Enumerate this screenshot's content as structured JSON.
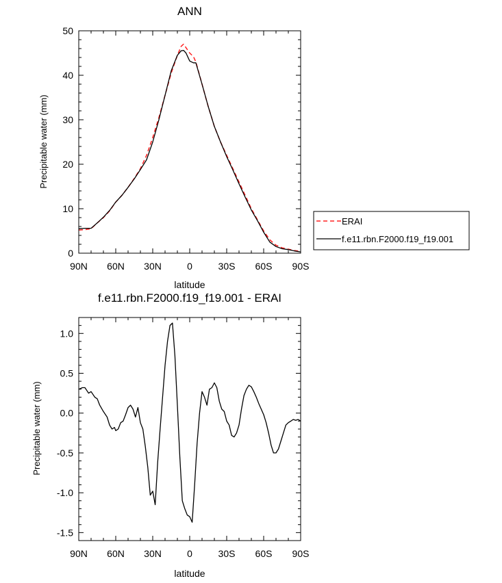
{
  "chart_data": [
    {
      "type": "line",
      "title": "ANN",
      "xlabel": "latitude",
      "ylabel": "Precipitable water (mm)",
      "xlim": [
        90,
        -90
      ],
      "ylim": [
        0,
        50
      ],
      "x_ticks": [
        90,
        60,
        30,
        0,
        -30,
        -60,
        -90
      ],
      "x_tick_labels": [
        "90N",
        "60N",
        "30N",
        "0",
        "30S",
        "60S",
        "90S"
      ],
      "y_ticks": [
        0,
        10,
        20,
        30,
        40,
        50
      ],
      "y_tick_labels": [
        "0",
        "10",
        "20",
        "30",
        "40",
        "50"
      ],
      "grid": false,
      "legend": "outside-right",
      "series": [
        {
          "name": "ERAI",
          "color": "#ff2020",
          "dash": "dashed",
          "x": [
            90,
            85,
            80,
            75,
            70,
            65,
            60,
            55,
            50,
            45,
            40,
            35,
            30,
            25,
            20,
            15,
            10,
            7,
            5,
            3,
            0,
            -3,
            -5,
            -10,
            -15,
            -20,
            -25,
            -30,
            -35,
            -40,
            -45,
            -50,
            -55,
            -60,
            -65,
            -70,
            -75,
            -80,
            -85,
            -90
          ],
          "values": [
            5.2,
            5.3,
            5.5,
            6.8,
            8.0,
            9.5,
            11.5,
            13.0,
            14.8,
            16.8,
            19.0,
            22.0,
            26.0,
            30.5,
            35.5,
            40.5,
            44.5,
            46.5,
            47.0,
            46.2,
            45.0,
            44.2,
            43.0,
            38.0,
            33.0,
            28.5,
            25.0,
            22.0,
            19.0,
            16.0,
            13.0,
            10.0,
            7.5,
            5.0,
            3.0,
            1.8,
            1.2,
            0.9,
            0.6,
            0.4
          ]
        },
        {
          "name": "f.e11.rbn.F2000.f19_f19.001",
          "color": "#000000",
          "dash": "solid",
          "x": [
            90,
            85,
            80,
            75,
            70,
            65,
            60,
            55,
            50,
            45,
            40,
            35,
            30,
            25,
            20,
            15,
            10,
            7,
            5,
            3,
            0,
            -3,
            -5,
            -10,
            -15,
            -20,
            -25,
            -30,
            -35,
            -40,
            -45,
            -50,
            -55,
            -60,
            -65,
            -70,
            -75,
            -80,
            -85,
            -90
          ],
          "values": [
            5.5,
            5.6,
            5.6,
            6.8,
            8.1,
            9.6,
            11.5,
            13.0,
            14.8,
            16.7,
            18.8,
            21.0,
            25.0,
            30.0,
            35.5,
            41.0,
            44.5,
            45.5,
            45.6,
            45.0,
            43.2,
            42.8,
            42.8,
            38.0,
            33.0,
            28.5,
            25.0,
            21.7,
            18.7,
            15.6,
            12.6,
            9.7,
            7.3,
            4.7,
            2.5,
            1.5,
            1.0,
            0.8,
            0.5,
            0.3
          ]
        }
      ]
    },
    {
      "type": "line",
      "title": "f.e11.rbn.F2000.f19_f19.001 - ERAI",
      "xlabel": "latitude",
      "ylabel": "Precipitable water (mm)",
      "xlim": [
        90,
        -90
      ],
      "ylim": [
        -1.6,
        1.2
      ],
      "x_ticks": [
        90,
        60,
        30,
        0,
        -30,
        -60,
        -90
      ],
      "x_tick_labels": [
        "90N",
        "60N",
        "30N",
        "0",
        "30S",
        "60S",
        "90S"
      ],
      "y_ticks": [
        -1.5,
        -1.0,
        -0.5,
        0.0,
        0.5,
        1.0
      ],
      "y_tick_labels": [
        "-1.5",
        "-1.0",
        "-0.5",
        "0.0",
        "0.5",
        "1.0"
      ],
      "grid": false,
      "series": [
        {
          "color": "#000000",
          "dash": "solid",
          "x": [
            90,
            87,
            85,
            82,
            80,
            77,
            75,
            73,
            70,
            67,
            65,
            63,
            61,
            60,
            58,
            56,
            54,
            52,
            50,
            48,
            46,
            44,
            42,
            40,
            38,
            36,
            34,
            32,
            30,
            28,
            26,
            24,
            22,
            20,
            18,
            16,
            14,
            12,
            10,
            8,
            6,
            4,
            2,
            0,
            -2,
            -4,
            -6,
            -8,
            -10,
            -12,
            -14,
            -16,
            -18,
            -20,
            -22,
            -24,
            -26,
            -28,
            -30,
            -32,
            -34,
            -36,
            -38,
            -40,
            -42,
            -44,
            -46,
            -48,
            -50,
            -52,
            -54,
            -56,
            -58,
            -60,
            -62,
            -64,
            -66,
            -68,
            -70,
            -72,
            -74,
            -76,
            -78,
            -80,
            -82,
            -84,
            -86,
            -88,
            -90
          ],
          "values": [
            0.3,
            0.32,
            0.32,
            0.25,
            0.27,
            0.2,
            0.18,
            0.1,
            0.02,
            -0.05,
            -0.15,
            -0.2,
            -0.18,
            -0.22,
            -0.2,
            -0.12,
            -0.1,
            -0.02,
            0.07,
            0.1,
            0.05,
            -0.05,
            0.07,
            -0.12,
            -0.2,
            -0.42,
            -0.68,
            -1.03,
            -0.98,
            -1.15,
            -0.62,
            -0.2,
            0.2,
            0.6,
            0.9,
            1.1,
            1.13,
            0.72,
            0.1,
            -0.55,
            -1.1,
            -1.2,
            -1.28,
            -1.3,
            -1.37,
            -0.9,
            -0.38,
            0.0,
            0.27,
            0.2,
            0.1,
            0.3,
            0.32,
            0.38,
            0.32,
            0.15,
            0.05,
            0.02,
            -0.1,
            -0.15,
            -0.28,
            -0.3,
            -0.25,
            -0.15,
            0.05,
            0.22,
            0.3,
            0.35,
            0.33,
            0.27,
            0.2,
            0.12,
            0.05,
            -0.02,
            -0.12,
            -0.25,
            -0.4,
            -0.5,
            -0.5,
            -0.45,
            -0.35,
            -0.25,
            -0.15,
            -0.12,
            -0.1,
            -0.08,
            -0.09,
            -0.08,
            -0.1
          ]
        }
      ]
    }
  ]
}
